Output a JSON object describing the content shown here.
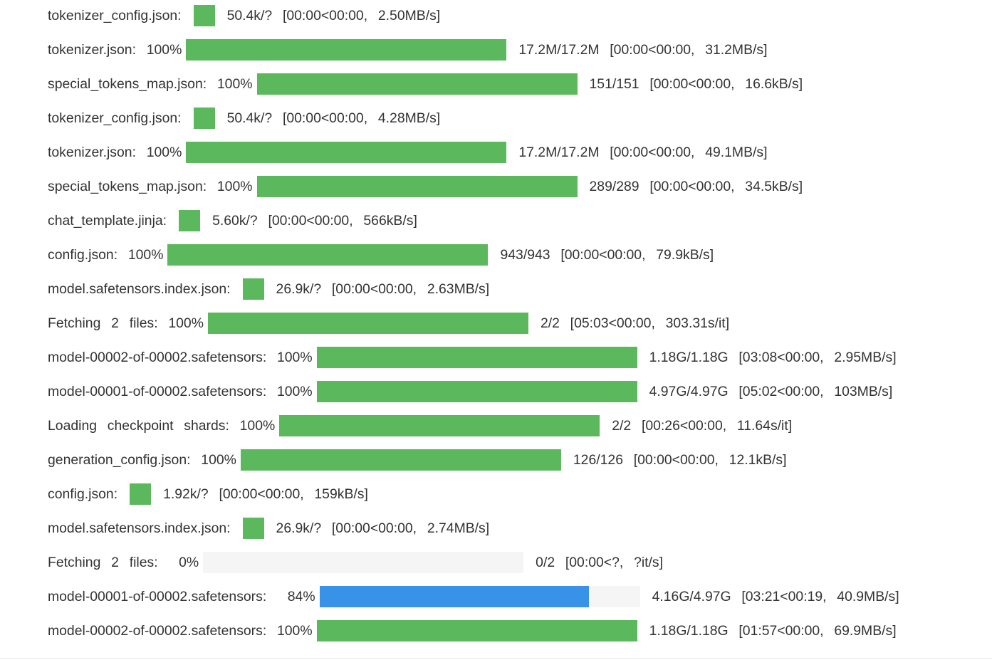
{
  "colors": {
    "complete": "#5cb85c",
    "in_progress": "#3792e8",
    "track": "#f5f5f5",
    "text": "#333333"
  },
  "rows": [
    {
      "label": "tokenizer_config.json:",
      "pct": "",
      "bar": "small",
      "fill": 1,
      "stats": "50.4k/?  [00:00<00:00,  2.50MB/s]"
    },
    {
      "label": "tokenizer.json:",
      "pct": "100%",
      "bar": "full",
      "fill": 1,
      "stats": "17.2M/17.2M  [00:00<00:00,  31.2MB/s]"
    },
    {
      "label": "special_tokens_map.json:",
      "pct": "100%",
      "bar": "full",
      "fill": 1,
      "stats": "151/151  [00:00<00:00,  16.6kB/s]"
    },
    {
      "label": "tokenizer_config.json:",
      "pct": "",
      "bar": "small",
      "fill": 1,
      "stats": "50.4k/?  [00:00<00:00,  4.28MB/s]"
    },
    {
      "label": "tokenizer.json:",
      "pct": "100%",
      "bar": "full",
      "fill": 1,
      "stats": "17.2M/17.2M  [00:00<00:00,  49.1MB/s]"
    },
    {
      "label": "special_tokens_map.json:",
      "pct": "100%",
      "bar": "full",
      "fill": 1,
      "stats": "289/289  [00:00<00:00,  34.5kB/s]"
    },
    {
      "label": "chat_template.jinja:",
      "pct": "",
      "bar": "small",
      "fill": 1,
      "stats": "5.60k/?  [00:00<00:00,  566kB/s]"
    },
    {
      "label": "config.json:",
      "pct": "100%",
      "bar": "full",
      "fill": 1,
      "stats": "943/943  [00:00<00:00,  79.9kB/s]"
    },
    {
      "label": "model.safetensors.index.json:",
      "pct": "",
      "bar": "small",
      "fill": 1,
      "stats": "26.9k/?  [00:00<00:00,  2.63MB/s]"
    },
    {
      "label": "Fetching  2  files:",
      "pct": "100%",
      "bar": "full",
      "fill": 1,
      "stats": "2/2  [05:03<00:00,  303.31s/it]"
    },
    {
      "label": "model-00002-of-00002.safetensors:",
      "pct": "100%",
      "bar": "full",
      "fill": 1,
      "stats": "1.18G/1.18G  [03:08<00:00,  2.95MB/s]"
    },
    {
      "label": "model-00001-of-00002.safetensors:",
      "pct": "100%",
      "bar": "full",
      "fill": 1,
      "stats": "4.97G/4.97G  [05:02<00:00,  103MB/s]"
    },
    {
      "label": "Loading  checkpoint  shards:",
      "pct": "100%",
      "bar": "full",
      "fill": 1,
      "stats": "2/2  [00:26<00:00,  11.64s/it]"
    },
    {
      "label": "generation_config.json:",
      "pct": "100%",
      "bar": "full",
      "fill": 1,
      "stats": "126/126  [00:00<00:00,  12.1kB/s]"
    },
    {
      "label": "config.json:",
      "pct": "",
      "bar": "small",
      "fill": 1,
      "stats": "1.92k/?  [00:00<00:00,  159kB/s]"
    },
    {
      "label": "model.safetensors.index.json:",
      "pct": "",
      "bar": "small",
      "fill": 1,
      "stats": "26.9k/?  [00:00<00:00,  2.74MB/s]"
    },
    {
      "label": "Fetching  2  files:",
      "pct": "  0%",
      "bar": "full",
      "fill": 0,
      "stats": "0/2  [00:00<?,  ?it/s]"
    },
    {
      "label": "model-00001-of-00002.safetensors:",
      "pct": "  84%",
      "bar": "full",
      "fill": 0.84,
      "active": true,
      "stats": "4.16G/4.97G  [03:21<00:19,  40.9MB/s]"
    },
    {
      "label": "model-00002-of-00002.safetensors:",
      "pct": "100%",
      "bar": "full",
      "fill": 1,
      "stats": "1.18G/1.18G  [01:57<00:00,  69.9MB/s]"
    }
  ]
}
